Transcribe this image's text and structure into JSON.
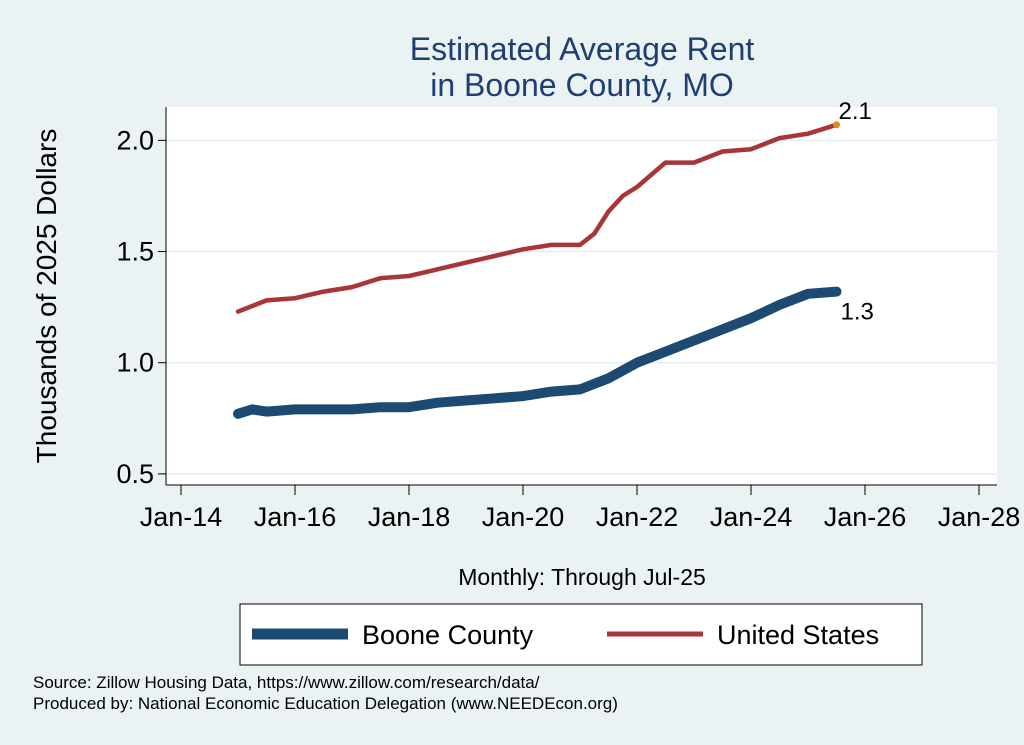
{
  "chart_data": {
    "type": "line",
    "title": [
      "Estimated Average Rent",
      "in Boone County, MO"
    ],
    "ylabel": "Thousands of 2025 Dollars",
    "xlabel": "Monthly: Through Jul-25",
    "ylim": [
      0.45,
      2.15
    ],
    "yticks": [
      0.5,
      1.0,
      1.5,
      2.0
    ],
    "ytick_labels": [
      "0.5",
      "1.0",
      "1.5",
      "2.0"
    ],
    "xlim": [
      2014.0,
      2028.0
    ],
    "xticks": [
      2014,
      2016,
      2018,
      2020,
      2022,
      2024,
      2026,
      2028
    ],
    "xtick_labels": [
      "Jan-14",
      "Jan-16",
      "Jan-18",
      "Jan-20",
      "Jan-22",
      "Jan-24",
      "Jan-26",
      "Jan-28"
    ],
    "grid": "horizontal",
    "legend_position": "bottom",
    "series": [
      {
        "name": "Boone County",
        "color": "#1d4a72",
        "end_label": "1.3",
        "points": [
          [
            2015.0,
            0.77
          ],
          [
            2015.25,
            0.79
          ],
          [
            2015.5,
            0.78
          ],
          [
            2016.0,
            0.79
          ],
          [
            2016.5,
            0.79
          ],
          [
            2017.0,
            0.79
          ],
          [
            2017.5,
            0.8
          ],
          [
            2018.0,
            0.8
          ],
          [
            2018.5,
            0.82
          ],
          [
            2019.0,
            0.83
          ],
          [
            2019.5,
            0.84
          ],
          [
            2020.0,
            0.85
          ],
          [
            2020.5,
            0.87
          ],
          [
            2021.0,
            0.88
          ],
          [
            2021.5,
            0.93
          ],
          [
            2022.0,
            1.0
          ],
          [
            2022.5,
            1.05
          ],
          [
            2023.0,
            1.1
          ],
          [
            2023.5,
            1.15
          ],
          [
            2024.0,
            1.2
          ],
          [
            2024.5,
            1.26
          ],
          [
            2025.0,
            1.31
          ],
          [
            2025.5,
            1.32
          ]
        ]
      },
      {
        "name": "United States",
        "color": "#a83638",
        "end_label": "2.1",
        "end_marker_color": "#e28a1a",
        "points": [
          [
            2015.0,
            1.23
          ],
          [
            2015.5,
            1.28
          ],
          [
            2016.0,
            1.29
          ],
          [
            2016.5,
            1.32
          ],
          [
            2017.0,
            1.34
          ],
          [
            2017.5,
            1.38
          ],
          [
            2018.0,
            1.39
          ],
          [
            2018.5,
            1.42
          ],
          [
            2019.0,
            1.45
          ],
          [
            2019.5,
            1.48
          ],
          [
            2020.0,
            1.51
          ],
          [
            2020.5,
            1.53
          ],
          [
            2021.0,
            1.53
          ],
          [
            2021.25,
            1.58
          ],
          [
            2021.5,
            1.68
          ],
          [
            2021.75,
            1.75
          ],
          [
            2022.0,
            1.79
          ],
          [
            2022.5,
            1.9
          ],
          [
            2023.0,
            1.9
          ],
          [
            2023.5,
            1.95
          ],
          [
            2024.0,
            1.96
          ],
          [
            2024.5,
            2.01
          ],
          [
            2025.0,
            2.03
          ],
          [
            2025.5,
            2.07
          ]
        ]
      }
    ],
    "notes": [
      "Source: Zillow Housing Data, https://www.zillow.com/research/data/",
      "Produced by: National Economic Education Delegation (www.NEEDEcon.org)"
    ]
  }
}
